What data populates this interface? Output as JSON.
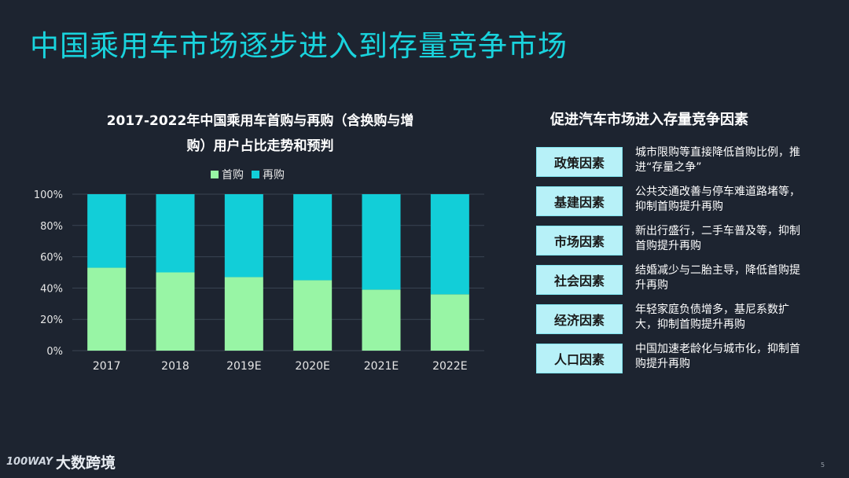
{
  "slide": {
    "title": "中国乘用车市场逐步进入到存量竞争市场",
    "page_number": "5"
  },
  "chart_data": {
    "type": "bar",
    "stacked": true,
    "title_line1": "2017-2022年中国乘用车首购与再购（含换购与增",
    "title_line2": "购）用户占比走势和预判",
    "categories": [
      "2017",
      "2018",
      "2019E",
      "2020E",
      "2021E",
      "2022E"
    ],
    "series": [
      {
        "name": "首购",
        "color": "#98f5a5",
        "values": [
          53,
          50,
          47,
          45,
          39,
          36
        ]
      },
      {
        "name": "再购",
        "color": "#12ced8",
        "values": [
          47,
          50,
          53,
          55,
          61,
          64
        ]
      }
    ],
    "y_ticks": [
      "0%",
      "20%",
      "40%",
      "60%",
      "80%",
      "100%"
    ],
    "ylim": [
      0,
      100
    ],
    "legend_position": "top-center"
  },
  "factors": {
    "title": "促进汽车市场进入存量竞争因素",
    "items": [
      {
        "label": "政策因素",
        "desc": "城市限购等直接降低首购比例，推进“存量之争”"
      },
      {
        "label": "基建因素",
        "desc": "公共交通改善与停车难道路堵等，抑制首购提升再购"
      },
      {
        "label": "市场因素",
        "desc": "新出行盛行，二手车普及等，抑制首购提升再购"
      },
      {
        "label": "社会因素",
        "desc": "结婚减少与二胎主导，降低首购提升再购"
      },
      {
        "label": "经济因素",
        "desc": "年轻家庭负债增多，基尼系数扩大，抑制首购提升再购"
      },
      {
        "label": "人口因素",
        "desc": "中国加速老龄化与城市化，抑制首购提升再购"
      }
    ]
  },
  "logo": {
    "mark": "100WAY",
    "text": "大数跨境"
  }
}
